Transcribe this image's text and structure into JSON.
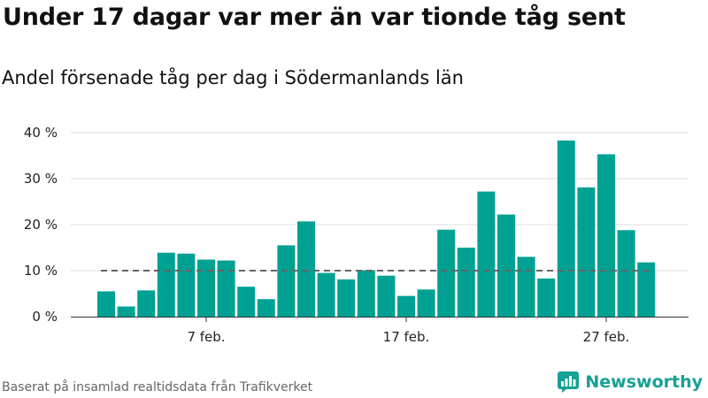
{
  "title": "Under 17 dagar var mer än var tionde tåg sent",
  "subtitle": "Andel försenade tåg per dag i Södermanlands län",
  "source": "Baserat på insamlad realtidsdata från Trafikverket",
  "brand": {
    "name": "Newsworthy",
    "icon": "newsworthy-logo-icon"
  },
  "colors": {
    "bar": "#00a193",
    "reference_line": "#666666",
    "grid": "#dddddd",
    "text": "#222222"
  },
  "chart_data": {
    "type": "bar",
    "title": "",
    "xlabel": "",
    "ylabel": "",
    "ylim": [
      0,
      40
    ],
    "yticks": [
      0,
      10,
      20,
      30,
      40
    ],
    "ytick_labels": [
      "0 %",
      "10 %",
      "20 %",
      "30 %",
      "40 %"
    ],
    "x_start_day": 2,
    "xticks": [
      {
        "day": 7,
        "label": "7 feb."
      },
      {
        "day": 17,
        "label": "17 feb."
      },
      {
        "day": 27,
        "label": "27 feb."
      }
    ],
    "values": [
      5.5,
      2.2,
      5.7,
      13.9,
      13.7,
      12.4,
      12.2,
      6.5,
      3.8,
      15.5,
      20.7,
      9.5,
      8.1,
      10.1,
      8.9,
      4.5,
      5.9,
      18.9,
      15.0,
      27.2,
      22.2,
      13.0,
      8.3,
      38.3,
      28.1,
      35.3,
      18.8,
      11.8
    ],
    "reference_line": 10,
    "grid": true,
    "legend": "none"
  }
}
